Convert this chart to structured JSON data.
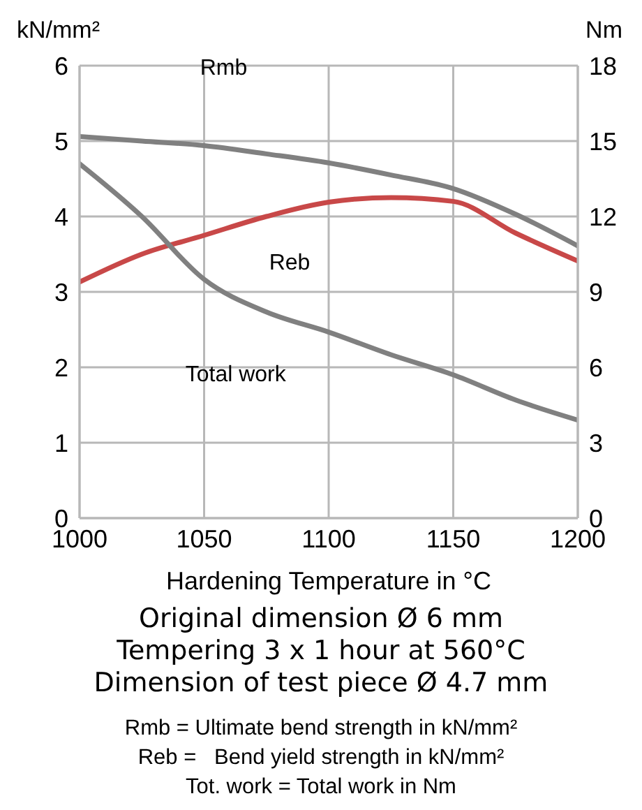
{
  "chart_data": {
    "type": "line",
    "xlabel": "Hardening Temperature in °C",
    "ylabel": "kN/mm²",
    "y2label": "Nm",
    "x": [
      1000,
      1025,
      1050,
      1075,
      1100,
      1125,
      1150,
      1175,
      1200
    ],
    "series": [
      {
        "name": "Rmb",
        "color": "#808080",
        "values": [
          5.06,
          5.0,
          4.94,
          4.83,
          4.71,
          4.55,
          4.37,
          4.03,
          3.61
        ]
      },
      {
        "name": "Reb",
        "color": "#c84848",
        "values": [
          3.13,
          3.5,
          3.75,
          4.0,
          4.19,
          4.25,
          4.2,
          3.78,
          3.41
        ]
      },
      {
        "name": "Total work",
        "color": "#808080",
        "axis": "y2",
        "values": [
          14.1,
          12.0,
          9.5,
          8.2,
          7.4,
          6.5,
          5.7,
          4.7,
          3.9
        ]
      }
    ],
    "xlim": [
      1000,
      1200
    ],
    "xticks": [
      1000,
      1050,
      1100,
      1150,
      1200
    ],
    "ylim": [
      0,
      6
    ],
    "yticks": [
      0,
      1,
      2,
      3,
      4,
      5,
      6
    ],
    "y2lim": [
      0,
      18
    ],
    "y2ticks": [
      0,
      3,
      6,
      9,
      12,
      15,
      18
    ],
    "grid": true,
    "legend": false,
    "marker": "none",
    "line_style": "solid",
    "annotations": [
      "Original dimension Ø 6 mm",
      "Tempering 3 x 1 hour at 560°C",
      "Dimension of test piece Ø 4.7 mm",
      "Rmb = Ultimate bend strength in kN/mm²",
      "Reb =   Bend yield strength in kN/mm²",
      "Tot. work = Total work in Nm"
    ]
  }
}
